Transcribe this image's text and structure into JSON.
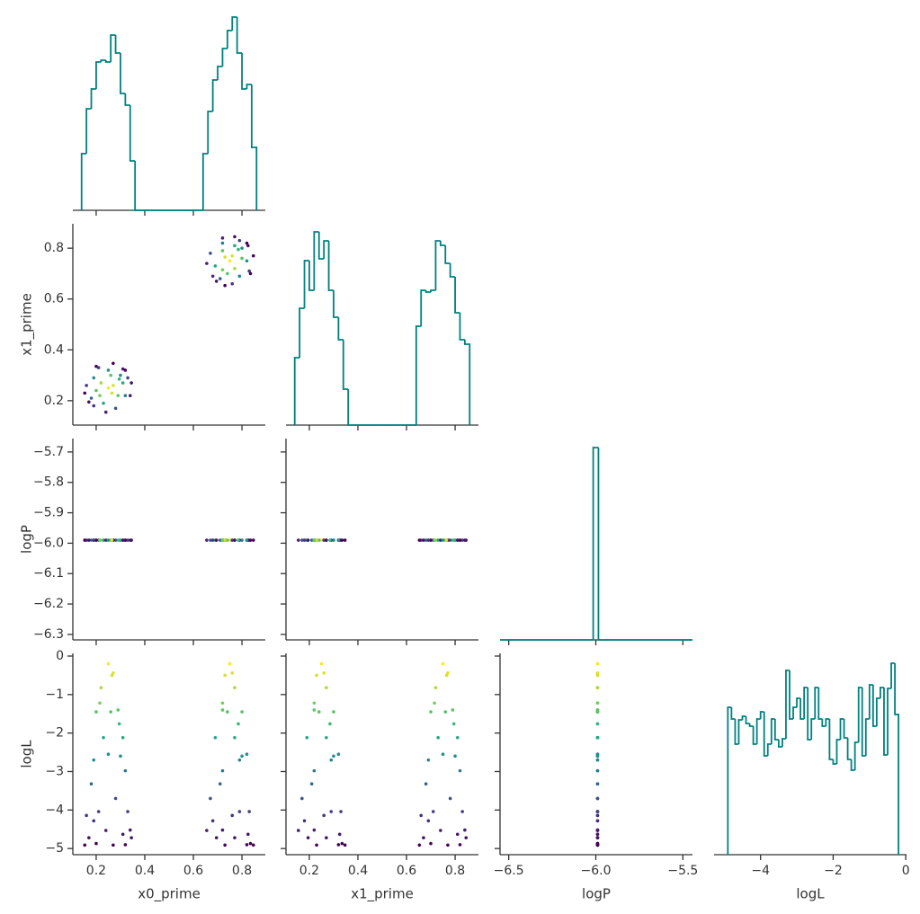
{
  "chart_data": {
    "type": "corner",
    "hist_color": "#008080",
    "colormap": "viridis",
    "x_axes": [
      {
        "label": "x0_prime",
        "lim": [
          0.104,
          0.896
        ],
        "ticks": [
          0.2,
          0.4,
          0.6,
          0.8
        ]
      },
      {
        "label": "x1_prime",
        "lim": [
          0.104,
          0.896
        ],
        "ticks": [
          0.2,
          0.4,
          0.6,
          0.8
        ]
      },
      {
        "label": "logP",
        "lim": [
          -6.55,
          -5.445
        ],
        "ticks": [
          {
            "value": -6.5,
            "label": "−6.5"
          },
          {
            "value": -6.0,
            "label": "−6.0"
          },
          {
            "value": -5.5,
            "label": "−5.5"
          }
        ]
      },
      {
        "label": "logL",
        "lim": [
          -5.28,
          0.02
        ],
        "ticks": [
          {
            "value": -4,
            "label": "−4"
          },
          {
            "value": -2,
            "label": "−2"
          },
          0
        ]
      }
    ],
    "y_axes": [
      {
        "label": "x1_prime",
        "lim": [
          0.104,
          0.896
        ],
        "ticks": [
          0.2,
          0.4,
          0.6,
          0.8
        ]
      },
      {
        "label": "logP",
        "lim": [
          -6.318,
          -5.656
        ],
        "ticks": [
          {
            "value": -5.7,
            "label": "−5.7"
          },
          {
            "value": -5.8,
            "label": "−5.8"
          },
          {
            "value": -5.9,
            "label": "−5.9"
          },
          {
            "value": -6.0,
            "label": "−6.0"
          },
          {
            "value": -6.1,
            "label": "−6.1"
          },
          {
            "value": -6.2,
            "label": "−6.2"
          },
          {
            "value": -6.3,
            "label": "−6.3"
          }
        ]
      },
      {
        "label": "logL",
        "lim": [
          -5.16,
          0.07
        ],
        "ticks": [
          0,
          {
            "value": -1,
            "label": "−1"
          },
          {
            "value": -2,
            "label": "−2"
          },
          {
            "value": -3,
            "label": "−3"
          },
          {
            "value": -4,
            "label": "−4"
          },
          {
            "value": -5,
            "label": "−5"
          }
        ]
      }
    ],
    "histograms": [
      {
        "ylim": [
          0,
          224
        ],
        "bins": [
          0.14,
          0.16,
          0.18,
          0.2,
          0.22,
          0.24,
          0.26,
          0.28,
          0.3,
          0.32,
          0.34,
          0.36,
          0.38,
          0.4,
          0.42,
          0.44,
          0.46,
          0.48,
          0.5,
          0.52,
          0.54,
          0.56,
          0.58,
          0.6,
          0.62,
          0.64,
          0.66,
          0.68,
          0.7,
          0.72,
          0.74,
          0.76,
          0.78,
          0.8,
          0.82,
          0.84,
          0.86
        ],
        "counts": [
          63,
          113,
          135,
          165,
          167,
          165,
          195,
          175,
          130,
          117,
          55,
          0,
          0,
          0,
          0,
          0,
          0,
          0,
          0,
          0,
          0,
          0,
          0,
          0,
          0,
          63,
          110,
          145,
          160,
          180,
          200,
          215,
          175,
          135,
          140,
          70
        ]
      },
      {
        "ylim": [
          0,
          224
        ],
        "bins": [
          0.14,
          0.16,
          0.18,
          0.2,
          0.22,
          0.24,
          0.26,
          0.28,
          0.3,
          0.32,
          0.34,
          0.36,
          0.38,
          0.4,
          0.42,
          0.44,
          0.46,
          0.48,
          0.5,
          0.52,
          0.54,
          0.56,
          0.58,
          0.6,
          0.62,
          0.64,
          0.66,
          0.68,
          0.7,
          0.72,
          0.74,
          0.76,
          0.78,
          0.8,
          0.82,
          0.84,
          0.86
        ],
        "counts": [
          75,
          130,
          183,
          150,
          215,
          185,
          205,
          150,
          120,
          95,
          40,
          0,
          0,
          0,
          0,
          0,
          0,
          0,
          0,
          0,
          0,
          0,
          0,
          0,
          0,
          110,
          150,
          148,
          150,
          205,
          200,
          180,
          165,
          125,
          95,
          90
        ]
      },
      {
        "ylim": [
          0,
          224
        ],
        "bins": [
          -6.55,
          -6.015,
          -5.985,
          -5.445
        ],
        "counts": [
          0,
          214,
          0
        ]
      },
      {
        "ylim": [
          0,
          224
        ],
        "bins": [
          -4.9,
          -4.8,
          -4.7,
          -4.6,
          -4.5,
          -4.4,
          -4.3,
          -4.2,
          -4.1,
          -4.0,
          -3.9,
          -3.8,
          -3.7,
          -3.6,
          -3.5,
          -3.4,
          -3.3,
          -3.2,
          -3.1,
          -3.0,
          -2.9,
          -2.8,
          -2.7,
          -2.6,
          -2.5,
          -2.4,
          -2.3,
          -2.2,
          -2.1,
          -2.0,
          -1.9,
          -1.8,
          -1.7,
          -1.6,
          -1.5,
          -1.4,
          -1.3,
          -1.2,
          -1.1,
          -1.0,
          -0.9,
          -0.8,
          -0.7,
          -0.6,
          -0.5,
          -0.4,
          -0.3,
          -0.2
        ],
        "counts": [
          164,
          151,
          123,
          150,
          154,
          146,
          143,
          123,
          151,
          159,
          110,
          123,
          151,
          128,
          120,
          129,
          205,
          151,
          164,
          174,
          151,
          186,
          128,
          151,
          186,
          151,
          143,
          151,
          106,
          101,
          128,
          151,
          130,
          106,
          94,
          125,
          186,
          110,
          151,
          189,
          143,
          174,
          186,
          111,
          185,
          213,
          156
        ]
      }
    ],
    "samples": [
      [
        0.25,
        0.25,
        -5.99,
        -0.2
      ],
      [
        0.27,
        0.26,
        -5.99,
        -0.44
      ],
      [
        0.22,
        0.27,
        -5.99,
        -0.82
      ],
      [
        0.29,
        0.22,
        -5.99,
        -1.4
      ],
      [
        0.2,
        0.24,
        -5.99,
        -1.45
      ],
      [
        0.26,
        0.3,
        -5.99,
        -1.45
      ],
      [
        0.31,
        0.27,
        -5.99,
        -2.12
      ],
      [
        0.23,
        0.19,
        -5.99,
        -2.12
      ],
      [
        0.19,
        0.29,
        -5.99,
        -2.7
      ],
      [
        0.3,
        0.3,
        -5.99,
        -2.6
      ],
      [
        0.32,
        0.22,
        -5.99,
        -2.98
      ],
      [
        0.18,
        0.21,
        -5.99,
        -3.32
      ],
      [
        0.28,
        0.17,
        -5.99,
        -3.7
      ],
      [
        0.21,
        0.33,
        -5.99,
        -4.04
      ],
      [
        0.33,
        0.29,
        -5.99,
        -4.04
      ],
      [
        0.16,
        0.26,
        -5.99,
        -4.14
      ],
      [
        0.34,
        0.22,
        -5.99,
        -4.52
      ],
      [
        0.24,
        0.155,
        -5.99,
        -4.53
      ],
      [
        0.31,
        0.325,
        -5.99,
        -4.63
      ],
      [
        0.17,
        0.195,
        -5.99,
        -4.72
      ],
      [
        0.345,
        0.27,
        -5.99,
        -4.72
      ],
      [
        0.2,
        0.335,
        -5.99,
        -4.87
      ],
      [
        0.27,
        0.347,
        -5.99,
        -4.91
      ],
      [
        0.153,
        0.23,
        -5.99,
        -4.91
      ],
      [
        0.265,
        0.23,
        -5.99,
        -0.5
      ],
      [
        0.215,
        0.22,
        -5.99,
        -1.22
      ],
      [
        0.295,
        0.285,
        -5.99,
        -1.76
      ],
      [
        0.32,
        0.32,
        -5.99,
        -4.9
      ],
      [
        0.19,
        0.18,
        -5.99,
        -4.28
      ],
      [
        0.25,
        0.32,
        -5.99,
        -2.55
      ],
      [
        0.75,
        0.75,
        -5.99,
        -0.2
      ],
      [
        0.76,
        0.77,
        -5.99,
        -0.44
      ],
      [
        0.77,
        0.72,
        -5.99,
        -0.82
      ],
      [
        0.72,
        0.79,
        -5.99,
        -1.4
      ],
      [
        0.74,
        0.7,
        -5.99,
        -1.45
      ],
      [
        0.8,
        0.76,
        -5.99,
        -1.45
      ],
      [
        0.77,
        0.81,
        -5.99,
        -2.12
      ],
      [
        0.69,
        0.73,
        -5.99,
        -2.12
      ],
      [
        0.79,
        0.69,
        -5.99,
        -2.7
      ],
      [
        0.8,
        0.8,
        -5.99,
        -2.6
      ],
      [
        0.72,
        0.82,
        -5.99,
        -2.98
      ],
      [
        0.71,
        0.68,
        -5.99,
        -3.32
      ],
      [
        0.67,
        0.78,
        -5.99,
        -3.7
      ],
      [
        0.83,
        0.71,
        -5.99,
        -4.04
      ],
      [
        0.79,
        0.83,
        -5.99,
        -4.04
      ],
      [
        0.76,
        0.66,
        -5.99,
        -4.14
      ],
      [
        0.72,
        0.84,
        -5.99,
        -4.52
      ],
      [
        0.655,
        0.74,
        -5.99,
        -4.53
      ],
      [
        0.825,
        0.81,
        -5.99,
        -4.63
      ],
      [
        0.695,
        0.67,
        -5.99,
        -4.72
      ],
      [
        0.77,
        0.845,
        -5.99,
        -4.72
      ],
      [
        0.835,
        0.7,
        -5.99,
        -4.87
      ],
      [
        0.847,
        0.77,
        -5.99,
        -4.91
      ],
      [
        0.73,
        0.653,
        -5.99,
        -4.91
      ],
      [
        0.73,
        0.765,
        -5.99,
        -0.5
      ],
      [
        0.72,
        0.715,
        -5.99,
        -1.22
      ],
      [
        0.785,
        0.795,
        -5.99,
        -1.76
      ],
      [
        0.82,
        0.82,
        -5.99,
        -4.9
      ],
      [
        0.68,
        0.69,
        -5.99,
        -4.28
      ],
      [
        0.82,
        0.75,
        -5.99,
        -2.55
      ]
    ]
  }
}
